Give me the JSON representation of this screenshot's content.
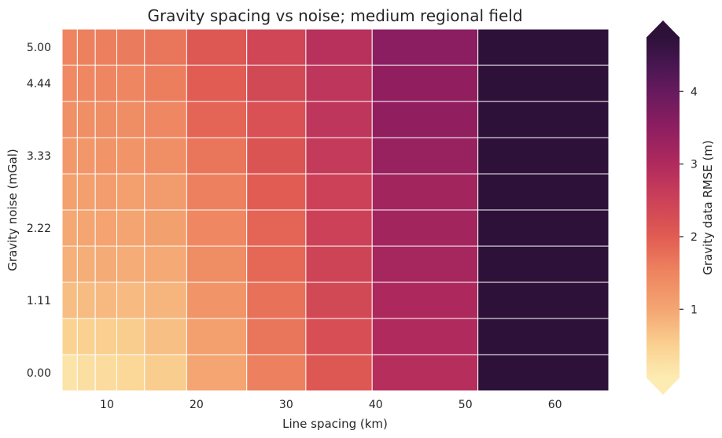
{
  "chart_data": {
    "type": "heatmap",
    "title": "Gravity spacing vs noise; medium regional field",
    "xlabel": "Line spacing (km)",
    "ylabel": "Gravity noise (mGal)",
    "colorbar_label": "Gravity data RMSE (m)",
    "x_edges": [
      5.0,
      6.7,
      8.7,
      11.1,
      14.2,
      18.9,
      25.6,
      32.2,
      39.6,
      51.4,
      66.0
    ],
    "y": [
      0.0,
      0.556,
      1.111,
      1.667,
      2.222,
      2.778,
      3.333,
      3.889,
      4.444,
      5.0
    ],
    "x_ticks": [
      10,
      20,
      30,
      40,
      50,
      60
    ],
    "y_ticks": [
      0.0,
      1.111,
      2.222,
      3.333,
      4.444,
      5.0
    ],
    "y_tick_labels": [
      "0.00",
      "1.11",
      "2.22",
      "3.33",
      "4.44",
      "5.00"
    ],
    "colorbar_ticks": [
      1,
      2,
      3,
      4
    ],
    "color_range": [
      0.05,
      4.75
    ],
    "colorbar_extend": "both",
    "grid": true,
    "values": [
      [
        0.18,
        0.28,
        0.32,
        0.4,
        0.55,
        1.0,
        1.55,
        2.1,
        2.9,
        4.8
      ],
      [
        0.47,
        0.5,
        0.52,
        0.55,
        0.7,
        1.1,
        1.7,
        2.25,
        3.0,
        4.8
      ],
      [
        0.72,
        0.74,
        0.77,
        0.75,
        0.82,
        1.25,
        1.75,
        2.35,
        3.05,
        4.8
      ],
      [
        0.87,
        0.9,
        0.93,
        0.92,
        0.95,
        1.38,
        1.85,
        2.45,
        3.15,
        4.8
      ],
      [
        0.97,
        1.0,
        1.03,
        1.02,
        1.08,
        1.45,
        1.9,
        2.5,
        3.2,
        4.8
      ],
      [
        1.07,
        1.1,
        1.12,
        1.1,
        1.15,
        1.55,
        2.0,
        2.5,
        3.2,
        4.8
      ],
      [
        1.18,
        1.22,
        1.25,
        1.25,
        1.35,
        1.7,
        2.15,
        2.65,
        3.35,
        4.8
      ],
      [
        1.33,
        1.36,
        1.38,
        1.38,
        1.45,
        1.9,
        2.2,
        2.75,
        3.45,
        4.8
      ],
      [
        1.42,
        1.45,
        1.47,
        1.47,
        1.58,
        2.0,
        2.35,
        2.75,
        3.45,
        4.8
      ],
      [
        1.5,
        1.55,
        1.57,
        1.62,
        1.7,
        2.1,
        2.4,
        2.85,
        3.55,
        4.85
      ]
    ],
    "colormap": [
      [
        0.05,
        "#fdecb2"
      ],
      [
        0.5,
        "#fad191"
      ],
      [
        1.0,
        "#f4a572"
      ],
      [
        1.5,
        "#ee8560"
      ],
      [
        2.0,
        "#e15c52"
      ],
      [
        2.5,
        "#cc4158"
      ],
      [
        3.0,
        "#b02a5d"
      ],
      [
        3.5,
        "#8e1e60"
      ],
      [
        4.0,
        "#661a5d"
      ],
      [
        4.4,
        "#45164f"
      ],
      [
        4.75,
        "#2d1139"
      ]
    ]
  }
}
